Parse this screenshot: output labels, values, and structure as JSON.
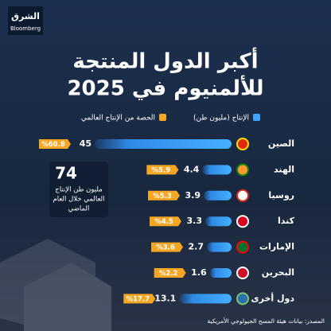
{
  "brand": {
    "name": "الشرق",
    "partner": "Bloomberg"
  },
  "chart_data": {
    "type": "bar",
    "orientation": "horizontal",
    "title": [
      "أكبر الدول المنتجة",
      "للألمنيوم في 2025"
    ],
    "categories": [
      "الصين",
      "الهند",
      "روسيا",
      "كندا",
      "الإمارات",
      "البحرين",
      "دول أخرى"
    ],
    "series": [
      {
        "name": "الإنتاج (مليون طن)",
        "color": "#3ea6ff",
        "values": [
          45,
          4.4,
          3.9,
          3.3,
          2.7,
          1.6,
          13.1
        ]
      },
      {
        "name": "الحصة من الإنتاج العالمي",
        "color": "#f5a623",
        "values": [
          60.8,
          5.9,
          5.3,
          4.5,
          3.6,
          2.2,
          17.7
        ],
        "value_labels": [
          "%60.8",
          "%5.9",
          "%5.3",
          "%4.5",
          "%3.6",
          "%2.2",
          "%17.7"
        ]
      }
    ],
    "annotation": {
      "value": 74,
      "text": [
        "مليون طن الإنتاج",
        "العالمي خلال العام",
        "الماضي"
      ]
    },
    "source": "المصدر: بيانات هيئة المسح الجيولوجي الأمريكية"
  }
}
